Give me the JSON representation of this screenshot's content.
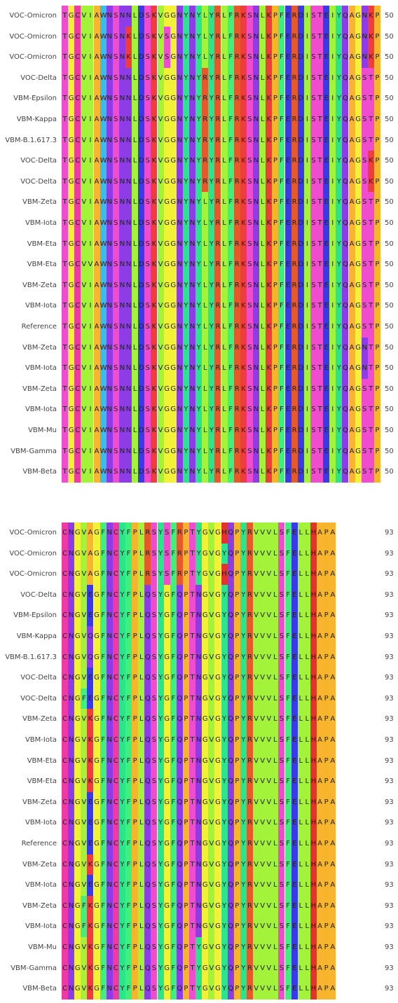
{
  "colors": {
    "A": "#f9b530",
    "C": "#ef3aa6",
    "D": "#3a3ae8",
    "E": "#3a3ae8",
    "F": "#3ff07c",
    "G": "#f1f136",
    "H": "#e3332e",
    "I": "#a3f33a",
    "K": "#f03c3c",
    "L": "#a3f33a",
    "M": "#a3f33a",
    "N": "#8e3ce8",
    "P": "#f7b52c",
    "Q": "#8e3ce8",
    "R": "#e5592a",
    "S": "#f04dce",
    "T": "#f04dce",
    "V": "#a3f33a",
    "W": "#3abde8",
    "Y": "#2be58c"
  },
  "blocks": [
    {
      "end_position": "50",
      "rows": [
        {
          "name": "VOC-Omicron",
          "seq": "TGCVIAWNSNNLDSKVGGNYNYLYRLFRKSNLKPFERDISTEIYQAGNKP"
        },
        {
          "name": "VOC-Omicron",
          "seq": "TGCVIAWNSNKLDSKVSGNYNYLYRLFRKSNLKPFERDISTEIYQAGNKP"
        },
        {
          "name": "VOC-Omicron",
          "seq": "TGCVIAWNSNKLDSKVSGNYNYLYRLFRKSNLKPFERDISTEIYQAGNKP"
        },
        {
          "name": "VOC-Delta",
          "seq": "TGCVIAWNSNNLDSKVGGNYNYRYRLFRKSNLKPFERDISTEIYQAGSTP"
        },
        {
          "name": "VBM-Epsilon",
          "seq": "TGCVIAWNSNNLDSKVGGNYNYRYRLFRKSNLKPFERDISTEIYQAGSTP"
        },
        {
          "name": "VBM-Kappa",
          "seq": "TGCVIAWNSNNLDSKVGGNYNYRYRLFRKSNLKPFERDISTEIYQAGSTP"
        },
        {
          "name": "VBM-B.1.617.3",
          "seq": "TGCVIAWNSNNLDSKVGGNYNYRYRLFRKSNLKPFERDISTEIYQAGSTP"
        },
        {
          "name": "VOC-Delta",
          "seq": "TGCVIAWNSNNLDSKVGGNYNYRYRLFRKSNLKPFERDISTEIYQAGSKP"
        },
        {
          "name": "VOC-Delta",
          "seq": "TGCVIAWNSNNLDSKVGGNYNYRYRLFRKSNLKPFERDISTEIYQAGSKP"
        },
        {
          "name": "VBM-Zeta",
          "seq": "TGCVIAWNSNNLDSKVGGNYNYLYRLFRKSNLKPFERDISTEIYQAGSTP"
        },
        {
          "name": "VBM-Iota",
          "seq": "TGCVIAWNSNNLDSKVGGNYNYLYRLFRKSNLKPFERDISTEIYQAGSTP"
        },
        {
          "name": "VBM-Eta",
          "seq": "TGCVIAWNSNNLDSKVGGNYNYLYRLFRKSNLKPFERDISTEIYQAGSTP"
        },
        {
          "name": "VBM-Eta",
          "seq": "TGCVVAWNSNNLDSKVGGNYNYLYRLFRKSNLKPFERDISTEIYQAGSTP"
        },
        {
          "name": "VBM-Zeta",
          "seq": "TGCVIAWNSNNLDSKVGGNYNYLYRLFRKSNLKPFERDISTEIYQAGSTP"
        },
        {
          "name": "VBM-Iota",
          "seq": "TGCVIAWNSNNLDSKVGGNYNYLYRLFRKSNLKPFERDISTEIYQAGSTP"
        },
        {
          "name": "Reference",
          "seq": "TGCVIAWNSNNLDSKVGGNYNYLYRLFRKSNLKPFERDISTEIYQAGSTP"
        },
        {
          "name": "VBM-Zeta",
          "seq": "TGCVIAWNSNNLDSKVGGNYNYLYRLFRKSNLKPFERDISTEIYQAGNTP"
        },
        {
          "name": "VBM-Iota",
          "seq": "TGCVIAWNSNNLDSKVGGNYNYLYRLFRKSNLKPFERDISTEIYQAGNTP"
        },
        {
          "name": "VBM-Zeta",
          "seq": "TGCVIAWNSNNLDSKVGGNYNYLYRLFRKSNLKPFERDISTEIYQAGSTP"
        },
        {
          "name": "VBM-Iota",
          "seq": "TGCVIAWNSNNLDSKVGGNYNYLYRLFRKSNLKPFERDISTEIYQAGSTP"
        },
        {
          "name": "VBM-Mu",
          "seq": "TGCVIAWNSNNLDSKVGGNYNYLYRLFRKSNLKPFERDISTEIYQAGSTP"
        },
        {
          "name": "VBM-Gamma",
          "seq": "TGCVIAWNSNNLDSKVGGNYNYLYRLFRKSNLKPFERDISTEIYQAGSTP"
        },
        {
          "name": "VBM-Beta",
          "seq": "TGCVIAWNSNNLDSKVGGNYNYLYRLFRKSNLKPFERDISTEIYQAGSTP"
        }
      ]
    },
    {
      "end_position": "93",
      "rows": [
        {
          "name": "VOC-Omicron",
          "seq": "CNGVAGFNCYFPLRSYSFRPTYGVGHQPYRVVVLSFELLHAPA"
        },
        {
          "name": "VOC-Omicron",
          "seq": "CNGVAGFNCYFPLRSYSFRPTYGVGYQPYRVVVLSFELLHAPA"
        },
        {
          "name": "VOC-Omicron",
          "seq": "CNGVAGFNCYFPLRSYSFRPTYGVGHQPYRVVVLSFELLHAPA"
        },
        {
          "name": "VOC-Delta",
          "seq": "CNGVEGFNCYFPLQSYGFQPTNGVGYQPYRVVVLSFELLHAPA"
        },
        {
          "name": "VBM-Epsilon",
          "seq": "CNGVEGFNCYFPLQSYGFQPTNGVGYQPYRVVVLSFELLHAPA"
        },
        {
          "name": "VBM-Kappa",
          "seq": "CNGVQGFNCYFPLQSYGFQPTNGVGYQPYRVVVLSFELLHAPA"
        },
        {
          "name": "VBM-B.1.617.3",
          "seq": "CNGVQGFNCYFPLQSYGFQPTNGVGYQPYRVVVLSFELLHAPA"
        },
        {
          "name": "VOC-Delta",
          "seq": "CNGVEGFNCYFPLQSYGFQPTNGVGYQPYRVVVLSFELLHAPA"
        },
        {
          "name": "VOC-Delta",
          "seq": "CNGFEGFNCYFPLQSYGFQPTNGVGYQPYRVVVLSFELLHAPA"
        },
        {
          "name": "VBM-Zeta",
          "seq": "CNGVKGFNCYFPLQSYGFQPTNGVGYQPYRVVVLSFELLHAPA"
        },
        {
          "name": "VBM-Iota",
          "seq": "CNGVKGFNCYFPLQSYGFQPTNGVGYQPYRVVVLSFELLHAPA"
        },
        {
          "name": "VBM-Eta",
          "seq": "CNGVKGFNCYFPLQSYGFQPTNGVGYQPYRVVVLSFELLHAPA"
        },
        {
          "name": "VBM-Eta",
          "seq": "CNGVKGFNCYFPLQSYGFQPTNGVGYQPYRVVVLSFELLHAPA"
        },
        {
          "name": "VBM-Zeta",
          "seq": "CNGVEGFNCYFPLQSYGFQPTNGVGYQPYRVVVLSFELLHAPA"
        },
        {
          "name": "VBM-Iota",
          "seq": "CNGVEGFNCYFPLQSYGFQPTNGVGYQPYRVVVLSFELLHAPA"
        },
        {
          "name": "Reference",
          "seq": "CNGVEGFNCYFPLQSYGFQPTNGVGYQPYRVVVLSFELLHAPA"
        },
        {
          "name": "VBM-Zeta",
          "seq": "CNGVKGFNCYFPLQSYGFQPTNGVGYQPYRVVVLSFELLHAPA"
        },
        {
          "name": "VBM-Iota",
          "seq": "CNGVEGFNCYFPLQSYGFQPTNGVGYQPYRVVVLSFELLHAPA"
        },
        {
          "name": "VBM-Zeta",
          "seq": "CNGFKGFNCYFPLQSYGFQPTNGVGYQPYRVVVLSFELLHAPA"
        },
        {
          "name": "VBM-Iota",
          "seq": "CNGFKGFNCYFPLQSYGFQPTNGVGYQPYRVVVLSFELLHAPA"
        },
        {
          "name": "VBM-Mu",
          "seq": "CNGVKGFNCYFPLQSYGFQPTYGVGYQPYRVVVLSFELLHAPA"
        },
        {
          "name": "VBM-Gamma",
          "seq": "CNGVKGFNCYFPLQSYGFQPTYGVGYQPYRVVVLSFELLHAPA"
        },
        {
          "name": "VBM-Beta",
          "seq": "CNGVKGFNCYFPLQSYGFQPTYGVGYQPYRVVVLSFELLHAPA"
        }
      ]
    }
  ]
}
